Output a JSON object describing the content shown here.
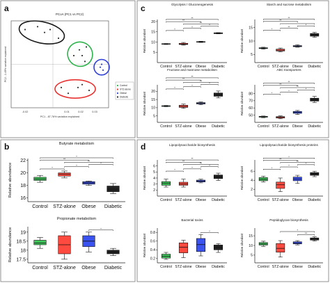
{
  "figure": {
    "colors": {
      "control": "#2db34a",
      "stz": "#e8312f",
      "obese": "#2f3fd6",
      "diabetic": "#1a1a1a",
      "panel_border": "#666666"
    }
  },
  "panels": {
    "a": {
      "letter": "a",
      "title": "PCoA (PC1 vs PC2)",
      "xlabel": "PC1 - 87.76% variation explained",
      "ylabel": "PC2 - 1.49% variation explained"
    },
    "b": {
      "letter": "b"
    },
    "c": {
      "letter": "c"
    },
    "d": {
      "letter": "d"
    }
  },
  "chart_data": [
    {
      "id": "pcoa",
      "type": "scatter",
      "title": "PCoA (PC1 vs PC2)",
      "xlabel": "PC1 - 87.76% variation explained",
      "ylabel": "PC2 - 1.49% variation explained",
      "xticks": [
        "-0.02",
        "0.01",
        "0.02",
        "0.03"
      ],
      "xlim": [
        -0.03,
        0.04
      ],
      "ylim": [
        -0.015,
        0.015
      ],
      "legend": [
        "Control",
        "STZ-alone",
        "Obese",
        "Diabetic"
      ],
      "legend_placement": "right",
      "series": [
        {
          "name": "Control",
          "x": [
            0.015,
            0.019,
            0.021,
            0.023,
            0.024
          ],
          "y": [
            0.003,
            0.005,
            0.003,
            0.001,
            0.006
          ]
        },
        {
          "name": "STZ-alone",
          "x": [
            0.006,
            0.011,
            0.018,
            0.021,
            0.026
          ],
          "y": [
            -0.008,
            -0.01,
            -0.008,
            -0.007,
            -0.009
          ]
        },
        {
          "name": "Obese",
          "x": [
            0.034,
            0.035,
            0.036
          ],
          "y": [
            -0.001,
            0.0,
            -0.002
          ]
        },
        {
          "name": "Diabetic",
          "x": [
            -0.02,
            -0.011,
            -0.006,
            -0.002,
            0.004
          ],
          "y": [
            0.012,
            0.013,
            0.011,
            0.012,
            0.009
          ]
        }
      ]
    },
    {
      "id": "butyrate",
      "type": "box",
      "title": "Butyrate metabolism",
      "ylabel": "Relative abundance",
      "categories": [
        "Control",
        "STZ-alone",
        "Obese",
        "Diabetic"
      ],
      "yticks": [
        16,
        18,
        20,
        22
      ],
      "ylim": [
        15.4,
        22.3
      ],
      "boxes": [
        [
          18.5,
          18.8,
          19.0,
          19.3,
          19.6
        ],
        [
          19.2,
          19.5,
          19.8,
          20.0,
          20.3
        ],
        [
          18.0,
          18.2,
          18.4,
          18.6,
          18.7
        ],
        [
          16.7,
          17.0,
          17.4,
          17.9,
          18.3
        ]
      ],
      "significance": [
        "*",
        "*",
        "*",
        "**",
        "**",
        "*"
      ]
    },
    {
      "id": "propionate",
      "type": "box",
      "title": "Propionate metabolism",
      "ylabel": "Relative abundance",
      "categories": [
        "Control",
        "STZ-alone",
        "Obese",
        "Diabetic"
      ],
      "yticks": [
        17.5,
        18,
        18.5,
        19
      ],
      "ylim": [
        17.3,
        19.3
      ],
      "boxes": [
        [
          18.1,
          18.3,
          18.4,
          18.55,
          18.7
        ],
        [
          17.5,
          17.8,
          18.3,
          18.8,
          19.0
        ],
        [
          17.9,
          18.2,
          18.5,
          18.8,
          19.0
        ],
        [
          17.7,
          17.8,
          17.9,
          18.0,
          18.1
        ]
      ],
      "significance": [
        "*"
      ]
    },
    {
      "id": "glycolysis",
      "type": "box",
      "title": "Glycolysis / Gluconeogenesis",
      "ylabel": "Relative abundant",
      "categories": [
        "Control",
        "STZ-alone",
        "Obese",
        "Diabetic"
      ],
      "yticks": [
        5,
        10,
        15,
        20
      ],
      "ylim": [
        0,
        21
      ],
      "boxes": [
        [
          8.8,
          9.0,
          9.1,
          9.2,
          9.3
        ],
        [
          8.5,
          8.8,
          9.0,
          9.4,
          9.8
        ],
        [
          9.8,
          10.0,
          10.1,
          10.2,
          10.4
        ],
        [
          14.0,
          14.1,
          14.3,
          14.5,
          14.6
        ]
      ],
      "significance": [
        "*",
        "*",
        "*",
        "**",
        "**",
        "**"
      ]
    },
    {
      "id": "starch",
      "type": "box",
      "title": "Starch and sucrose metabolism",
      "ylabel": "Relative abundant",
      "categories": [
        "Control",
        "STZ-alone",
        "Obese",
        "Diabetic"
      ],
      "yticks": [
        5,
        10,
        15
      ],
      "ylim": [
        2,
        18
      ],
      "boxes": [
        [
          7.0,
          7.2,
          7.4,
          7.5,
          7.7
        ],
        [
          6.0,
          6.3,
          6.6,
          7.0,
          7.4
        ],
        [
          7.7,
          7.9,
          8.1,
          8.3,
          8.6
        ],
        [
          11.4,
          11.8,
          12.3,
          12.8,
          13.2
        ]
      ],
      "significance": [
        "*",
        "**",
        "*",
        "*",
        "**",
        "**"
      ]
    },
    {
      "id": "fructose",
      "type": "box",
      "title": "Fructose and mannose metabolism",
      "ylabel": "Relative abundant",
      "categories": [
        "Control",
        "STZ-alone",
        "Obese",
        "Diabetic"
      ],
      "yticks": [
        5,
        10,
        15,
        20
      ],
      "ylim": [
        1,
        24
      ],
      "boxes": [
        [
          10.6,
          10.8,
          11.0,
          11.2,
          11.4
        ],
        [
          9.6,
          10.2,
          10.8,
          11.5,
          12.2
        ],
        [
          11.8,
          12.3,
          12.7,
          13.1,
          13.5
        ],
        [
          16.0,
          17.0,
          18.0,
          19.0,
          20.2
        ]
      ],
      "significance": [
        "*",
        "*",
        "*",
        "**",
        "**",
        "**"
      ]
    },
    {
      "id": "abc",
      "type": "box",
      "title": "ABC transporters",
      "ylabel": "Relative abundant",
      "categories": [
        "Control",
        "STZ-alone",
        "Obese",
        "Diabetic"
      ],
      "yticks": [
        50,
        60,
        70,
        80
      ],
      "ylim": [
        40,
        92
      ],
      "boxes": [
        [
          46.5,
          47.2,
          47.8,
          48.3,
          48.8
        ],
        [
          45.0,
          46.0,
          47.0,
          48.0,
          49.0
        ],
        [
          51.0,
          52.5,
          54.0,
          55.2,
          56.5
        ],
        [
          67.5,
          69.5,
          71.5,
          73.5,
          76.0
        ]
      ],
      "significance": [
        "*",
        "*",
        "*",
        "**",
        "**",
        "**"
      ]
    },
    {
      "id": "lps_biosynthesis",
      "type": "box",
      "title": "Lipopolysaccharide biosynthesis",
      "ylabel": "Relative abundant",
      "categories": [
        "Control",
        "STZ-alone",
        "Obese",
        "Diabetic"
      ],
      "yticks": [
        2,
        3,
        4,
        5,
        6
      ],
      "ylim": [
        1,
        7
      ],
      "boxes": [
        [
          2.5,
          2.8,
          3.1,
          3.4,
          3.8
        ],
        [
          2.5,
          2.8,
          3.0,
          3.3,
          3.8
        ],
        [
          3.2,
          3.35,
          3.5,
          3.65,
          3.8
        ],
        [
          3.6,
          3.9,
          4.2,
          4.5,
          4.8
        ]
      ],
      "significance": [
        "*",
        "*",
        "*",
        "**",
        "**",
        "**"
      ]
    },
    {
      "id": "lps_proteins",
      "type": "box",
      "title": "Lipopolysaccharide biosynthesis proteins",
      "ylabel": "Relative abundant",
      "categories": [
        "Control",
        "STZ-alone",
        "Obese",
        "Diabetic"
      ],
      "yticks": [
        2,
        4,
        6
      ],
      "ylim": [
        0.5,
        8.5
      ],
      "boxes": [
        [
          3.6,
          3.9,
          4.2,
          4.6,
          4.9
        ],
        [
          1.5,
          2.2,
          3.0,
          3.6,
          4.5
        ],
        [
          3.3,
          3.9,
          4.3,
          4.7,
          5.1
        ],
        [
          4.8,
          5.1,
          5.4,
          5.7,
          6.0
        ]
      ],
      "significance": [
        "*",
        "*",
        "*",
        "**",
        "**",
        "*"
      ]
    },
    {
      "id": "bacterial_toxins",
      "type": "box",
      "title": "Bacterial toxins",
      "ylabel": "Relative abundant",
      "categories": [
        "Control",
        "STZ-alone",
        "Obese",
        "Diabetic"
      ],
      "yticks": [
        0.2,
        0.4,
        0.6,
        0.8
      ],
      "ylim": [
        0.1,
        0.9
      ],
      "boxes": [
        [
          0.18,
          0.21,
          0.25,
          0.3,
          0.34
        ],
        [
          0.22,
          0.33,
          0.46,
          0.56,
          0.62
        ],
        [
          0.26,
          0.36,
          0.52,
          0.66,
          0.75
        ],
        [
          0.34,
          0.4,
          0.46,
          0.51,
          0.54
        ]
      ],
      "significance": [
        "*"
      ]
    },
    {
      "id": "peptidoglycan",
      "type": "box",
      "title": "Peptidoglycan biosynthesis",
      "ylabel": "Relative abundant",
      "categories": [
        "Control",
        "STZ-alone",
        "Obese",
        "Diabetic"
      ],
      "yticks": [
        5,
        10,
        15
      ],
      "ylim": [
        1,
        19
      ],
      "boxes": [
        [
          9.5,
          10.2,
          10.8,
          11.5,
          12.2
        ],
        [
          4.0,
          6.5,
          8.5,
          11.0,
          12.5
        ],
        [
          10.3,
          10.8,
          11.3,
          11.9,
          12.5
        ],
        [
          12.3,
          12.8,
          13.3,
          13.9,
          14.5
        ]
      ],
      "significance": [
        "**",
        "*"
      ]
    }
  ]
}
